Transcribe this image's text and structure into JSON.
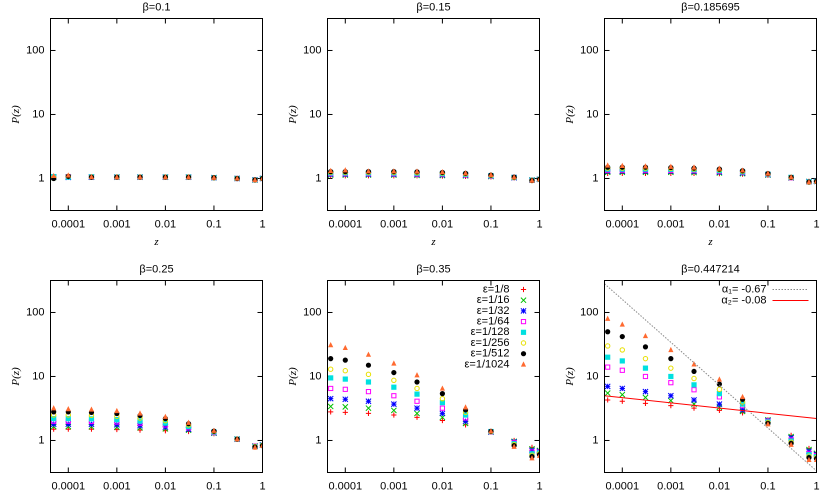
{
  "chart_data": [
    {
      "type": "scatter",
      "title": "β=0.1",
      "xlabel": "z",
      "ylabel": "P(z)",
      "log_x": true,
      "log_y": true,
      "xlim": [
        4.3e-05,
        1
      ],
      "ylim": [
        0.316,
        316
      ],
      "xticks": [
        0.0001,
        0.001,
        0.01,
        0.1,
        1
      ],
      "yticks": [
        1,
        10,
        100
      ],
      "x": [
        5e-05,
        0.0001,
        0.0003,
        0.001,
        0.003,
        0.01,
        0.03,
        0.1,
        0.3,
        0.7,
        1
      ],
      "series": [
        {
          "color": "#ff0000",
          "marker": "plus",
          "values": [
            1.05,
            1.05,
            1.05,
            1.05,
            1.05,
            1.05,
            1.05,
            1.03,
            1.0,
            0.95,
            1.0
          ]
        },
        {
          "color": "#00c000",
          "marker": "cross",
          "values": [
            1.04,
            1.06,
            1.05,
            1.05,
            1.05,
            1.05,
            1.05,
            1.03,
            1.0,
            0.95,
            1.0
          ]
        },
        {
          "color": "#0000ff",
          "marker": "star",
          "values": [
            1.06,
            1.04,
            1.05,
            1.05,
            1.05,
            1.05,
            1.05,
            1.03,
            1.0,
            0.95,
            1.0
          ]
        },
        {
          "color": "#ff00ff",
          "marker": "square-open",
          "values": [
            1.05,
            1.07,
            1.05,
            1.05,
            1.05,
            1.05,
            1.05,
            1.03,
            1.0,
            0.95,
            1.0
          ]
        },
        {
          "color": "#00e0e0",
          "marker": "square",
          "values": [
            1.07,
            1.05,
            1.06,
            1.05,
            1.05,
            1.05,
            1.05,
            1.03,
            1.0,
            0.95,
            1.0
          ]
        },
        {
          "color": "#e8e000",
          "marker": "circle-open",
          "values": [
            1.03,
            1.08,
            1.05,
            1.05,
            1.05,
            1.05,
            1.05,
            1.03,
            1.0,
            0.95,
            1.0
          ]
        },
        {
          "color": "#000000",
          "marker": "circle",
          "values": [
            1.0,
            1.08,
            1.05,
            1.05,
            1.05,
            1.05,
            1.05,
            1.03,
            1.0,
            0.95,
            1.0
          ]
        },
        {
          "color": "#ff6a30",
          "marker": "triangle",
          "values": [
            1.1,
            1.12,
            1.06,
            1.05,
            1.05,
            1.05,
            1.05,
            1.03,
            1.0,
            0.95,
            1.0
          ]
        }
      ]
    },
    {
      "type": "scatter",
      "title": "β=0.15",
      "xlabel": "z",
      "ylabel": "P(z)",
      "log_x": true,
      "log_y": true,
      "xlim": [
        4.3e-05,
        1
      ],
      "ylim": [
        0.316,
        316
      ],
      "xticks": [
        0.0001,
        0.001,
        0.01,
        0.1,
        1
      ],
      "yticks": [
        1,
        10,
        100
      ],
      "x": [
        5e-05,
        0.0001,
        0.0003,
        0.001,
        0.003,
        0.01,
        0.03,
        0.1,
        0.3,
        0.7,
        1
      ],
      "series": [
        {
          "color": "#ff0000",
          "marker": "plus",
          "values": [
            1.1,
            1.1,
            1.1,
            1.1,
            1.1,
            1.09,
            1.08,
            1.06,
            1.02,
            0.95,
            0.97
          ]
        },
        {
          "color": "#00c000",
          "marker": "cross",
          "values": [
            1.13,
            1.13,
            1.13,
            1.13,
            1.12,
            1.11,
            1.1,
            1.07,
            1.03,
            0.95,
            0.97
          ]
        },
        {
          "color": "#0000ff",
          "marker": "star",
          "values": [
            1.16,
            1.16,
            1.16,
            1.16,
            1.15,
            1.14,
            1.12,
            1.09,
            1.03,
            0.94,
            0.97
          ]
        },
        {
          "color": "#ff00ff",
          "marker": "square-open",
          "values": [
            1.19,
            1.19,
            1.19,
            1.19,
            1.18,
            1.17,
            1.14,
            1.1,
            1.04,
            0.94,
            0.97
          ]
        },
        {
          "color": "#00e0e0",
          "marker": "square",
          "values": [
            1.22,
            1.22,
            1.22,
            1.22,
            1.21,
            1.19,
            1.16,
            1.11,
            1.04,
            0.94,
            0.97
          ]
        },
        {
          "color": "#e8e000",
          "marker": "circle-open",
          "values": [
            1.25,
            1.25,
            1.25,
            1.25,
            1.24,
            1.22,
            1.18,
            1.12,
            1.04,
            0.93,
            0.97
          ]
        },
        {
          "color": "#000000",
          "marker": "circle",
          "values": [
            1.28,
            1.28,
            1.28,
            1.28,
            1.27,
            1.24,
            1.2,
            1.13,
            1.05,
            0.93,
            0.97
          ]
        },
        {
          "color": "#ff6a30",
          "marker": "triangle",
          "values": [
            1.32,
            1.35,
            1.3,
            1.3,
            1.29,
            1.26,
            1.21,
            1.14,
            1.05,
            0.93,
            0.97
          ]
        }
      ]
    },
    {
      "type": "scatter",
      "title": "β=0.185695",
      "xlabel": "z",
      "ylabel": "P(z)",
      "log_x": true,
      "log_y": true,
      "xlim": [
        4.3e-05,
        1
      ],
      "ylim": [
        0.316,
        316
      ],
      "xticks": [
        0.0001,
        0.001,
        0.01,
        0.1,
        1
      ],
      "yticks": [
        1,
        10,
        100
      ],
      "x": [
        5e-05,
        0.0001,
        0.0003,
        0.001,
        0.003,
        0.01,
        0.03,
        0.1,
        0.3,
        0.7,
        1
      ],
      "series": [
        {
          "color": "#ff0000",
          "marker": "plus",
          "values": [
            1.2,
            1.2,
            1.2,
            1.2,
            1.2,
            1.19,
            1.17,
            1.12,
            1.02,
            0.9,
            0.9
          ]
        },
        {
          "color": "#00c000",
          "marker": "cross",
          "values": [
            1.25,
            1.25,
            1.25,
            1.25,
            1.24,
            1.22,
            1.19,
            1.13,
            1.02,
            0.9,
            0.9
          ]
        },
        {
          "color": "#0000ff",
          "marker": "star",
          "values": [
            1.3,
            1.3,
            1.3,
            1.3,
            1.29,
            1.26,
            1.22,
            1.15,
            1.03,
            0.89,
            0.9
          ]
        },
        {
          "color": "#ff00ff",
          "marker": "square-open",
          "values": [
            1.35,
            1.35,
            1.35,
            1.34,
            1.33,
            1.3,
            1.25,
            1.16,
            1.03,
            0.89,
            0.9
          ]
        },
        {
          "color": "#00e0e0",
          "marker": "square",
          "values": [
            1.4,
            1.4,
            1.4,
            1.39,
            1.37,
            1.33,
            1.27,
            1.17,
            1.04,
            0.89,
            0.9
          ]
        },
        {
          "color": "#e8e000",
          "marker": "circle-open",
          "values": [
            1.45,
            1.45,
            1.45,
            1.44,
            1.41,
            1.37,
            1.3,
            1.18,
            1.04,
            0.88,
            0.9
          ]
        },
        {
          "color": "#000000",
          "marker": "circle",
          "values": [
            1.5,
            1.5,
            1.5,
            1.48,
            1.45,
            1.4,
            1.32,
            1.19,
            1.04,
            0.88,
            0.9
          ]
        },
        {
          "color": "#ff6a30",
          "marker": "triangle",
          "values": [
            1.6,
            1.58,
            1.55,
            1.53,
            1.49,
            1.43,
            1.34,
            1.2,
            1.05,
            0.88,
            0.9
          ]
        }
      ]
    },
    {
      "type": "scatter",
      "title": "β=0.25",
      "xlabel": "z",
      "ylabel": "P(z)",
      "log_x": true,
      "log_y": true,
      "xlim": [
        4.3e-05,
        1
      ],
      "ylim": [
        0.316,
        316
      ],
      "xticks": [
        0.0001,
        0.001,
        0.01,
        0.1,
        1
      ],
      "yticks": [
        1,
        10,
        100
      ],
      "x": [
        5e-05,
        0.0001,
        0.0003,
        0.001,
        0.003,
        0.01,
        0.03,
        0.1,
        0.3,
        0.7,
        1
      ],
      "series": [
        {
          "color": "#ff0000",
          "marker": "plus",
          "values": [
            1.5,
            1.5,
            1.5,
            1.48,
            1.45,
            1.42,
            1.38,
            1.28,
            1.05,
            0.82,
            0.85
          ]
        },
        {
          "color": "#00c000",
          "marker": "cross",
          "values": [
            1.65,
            1.65,
            1.64,
            1.62,
            1.58,
            1.52,
            1.45,
            1.3,
            1.05,
            0.82,
            0.85
          ]
        },
        {
          "color": "#0000ff",
          "marker": "star",
          "values": [
            1.8,
            1.8,
            1.79,
            1.76,
            1.7,
            1.62,
            1.5,
            1.32,
            1.05,
            0.81,
            0.85
          ]
        },
        {
          "color": "#ff00ff",
          "marker": "square-open",
          "values": [
            2.0,
            2.0,
            1.98,
            1.94,
            1.86,
            1.75,
            1.58,
            1.34,
            1.05,
            0.81,
            0.84
          ]
        },
        {
          "color": "#00e0e0",
          "marker": "square",
          "values": [
            2.2,
            2.2,
            2.18,
            2.12,
            2.02,
            1.87,
            1.65,
            1.36,
            1.05,
            0.8,
            0.84
          ]
        },
        {
          "color": "#e8e000",
          "marker": "circle-open",
          "values": [
            2.5,
            2.5,
            2.47,
            2.38,
            2.24,
            2.04,
            1.75,
            1.38,
            1.05,
            0.8,
            0.84
          ]
        },
        {
          "color": "#000000",
          "marker": "circle",
          "values": [
            2.8,
            2.8,
            2.75,
            2.64,
            2.45,
            2.2,
            1.83,
            1.4,
            1.05,
            0.79,
            0.83
          ]
        },
        {
          "color": "#ff6a30",
          "marker": "triangle",
          "values": [
            3.2,
            3.1,
            3.05,
            2.9,
            2.65,
            2.35,
            1.9,
            1.42,
            1.05,
            0.78,
            0.83
          ]
        }
      ]
    },
    {
      "type": "scatter",
      "title": "β=0.35",
      "xlabel": "z",
      "ylabel": "P(z)",
      "log_x": true,
      "log_y": true,
      "legend": "upper right",
      "xlim": [
        4.3e-05,
        1
      ],
      "ylim": [
        0.316,
        316
      ],
      "xticks": [
        0.0001,
        0.001,
        0.01,
        0.1,
        1
      ],
      "yticks": [
        1,
        10,
        100
      ],
      "x": [
        5e-05,
        0.0001,
        0.0003,
        0.001,
        0.003,
        0.01,
        0.03,
        0.1,
        0.3,
        0.7,
        1
      ],
      "series": [
        {
          "name": "ε=1/8",
          "color": "#ff0000",
          "marker": "plus",
          "values": [
            2.8,
            2.75,
            2.65,
            2.5,
            2.3,
            2.05,
            1.75,
            1.35,
            1.0,
            0.78,
            0.72
          ]
        },
        {
          "name": "ε=1/16",
          "color": "#00c000",
          "marker": "cross",
          "values": [
            3.4,
            3.35,
            3.2,
            2.95,
            2.65,
            2.3,
            1.85,
            1.35,
            0.97,
            0.74,
            0.7
          ]
        },
        {
          "name": "ε=1/32",
          "color": "#0000ff",
          "marker": "star",
          "values": [
            4.5,
            4.4,
            4.1,
            3.7,
            3.2,
            2.65,
            2.0,
            1.36,
            0.95,
            0.7,
            0.68
          ]
        },
        {
          "name": "ε=1/64",
          "color": "#ff00ff",
          "marker": "square-open",
          "values": [
            6.5,
            6.3,
            5.8,
            5.0,
            4.1,
            3.2,
            2.25,
            1.37,
            0.92,
            0.66,
            0.66
          ]
        },
        {
          "name": "ε=1/128",
          "color": "#00e0e0",
          "marker": "square",
          "values": [
            9.5,
            9.1,
            8.2,
            6.8,
            5.3,
            3.9,
            2.5,
            1.38,
            0.89,
            0.62,
            0.64
          ]
        },
        {
          "name": "ε=1/256",
          "color": "#e8e000",
          "marker": "circle-open",
          "values": [
            13,
            12.3,
            10.8,
            8.7,
            6.5,
            4.5,
            2.75,
            1.38,
            0.86,
            0.59,
            0.62
          ]
        },
        {
          "name": "ε=1/512",
          "color": "#000000",
          "marker": "circle",
          "values": [
            19,
            18,
            15,
            11.5,
            8.2,
            5.4,
            3.0,
            1.39,
            0.83,
            0.56,
            0.6
          ]
        },
        {
          "name": "ε=1/1024",
          "color": "#ff6a30",
          "marker": "triangle",
          "values": [
            31,
            28,
            22,
            16,
            10.5,
            6.5,
            3.3,
            1.4,
            0.8,
            0.53,
            0.58
          ]
        }
      ]
    },
    {
      "type": "scatter",
      "title": "β=0.447214",
      "xlabel": "z",
      "ylabel": "P(z)",
      "log_x": true,
      "log_y": true,
      "legend": "upper right",
      "xlim": [
        4.3e-05,
        1
      ],
      "ylim": [
        0.316,
        316
      ],
      "xticks": [
        0.0001,
        0.001,
        0.01,
        0.1,
        1
      ],
      "yticks": [
        1,
        10,
        100
      ],
      "x": [
        5e-05,
        0.0001,
        0.0003,
        0.001,
        0.003,
        0.01,
        0.03,
        0.1,
        0.3,
        0.7,
        1
      ],
      "series": [
        {
          "color": "#ff0000",
          "marker": "plus",
          "values": [
            4.3,
            4.1,
            3.8,
            3.5,
            3.2,
            2.95,
            2.7,
            2.1,
            1.2,
            0.75,
            0.65
          ]
        },
        {
          "color": "#00c000",
          "marker": "cross",
          "values": [
            5.5,
            5.2,
            4.7,
            4.2,
            3.7,
            3.3,
            2.85,
            2.1,
            1.15,
            0.72,
            0.63
          ]
        },
        {
          "color": "#0000ff",
          "marker": "star",
          "values": [
            7.0,
            6.5,
            5.8,
            5.0,
            4.3,
            3.7,
            3.0,
            2.05,
            1.1,
            0.68,
            0.61
          ]
        },
        {
          "color": "#ff00ff",
          "marker": "square-open",
          "values": [
            14,
            12.5,
            10,
            8,
            6.2,
            4.8,
            3.5,
            2.0,
            1.02,
            0.63,
            0.58
          ]
        },
        {
          "color": "#00e0e0",
          "marker": "square",
          "values": [
            20,
            17.5,
            13.5,
            10,
            7.4,
            5.4,
            3.7,
            1.95,
            0.98,
            0.6,
            0.56
          ]
        },
        {
          "color": "#e8e000",
          "marker": "circle-open",
          "values": [
            30,
            26,
            19,
            13.5,
            9.3,
            6.3,
            4.0,
            1.9,
            0.94,
            0.57,
            0.54
          ]
        },
        {
          "color": "#000000",
          "marker": "circle",
          "values": [
            50,
            42,
            29,
            19,
            12,
            7.6,
            4.4,
            1.85,
            0.9,
            0.54,
            0.52
          ]
        },
        {
          "color": "#ff6a30",
          "marker": "triangle",
          "values": [
            80,
            65,
            43,
            26,
            15.5,
            9.0,
            4.8,
            1.8,
            0.86,
            0.5,
            0.5
          ]
        }
      ],
      "fit_lines": [
        {
          "name": "α₁= -0.67",
          "color": "#888888",
          "dash": true,
          "x": [
            4.3e-05,
            1
          ],
          "values": [
            281,
            0.335
          ]
        },
        {
          "name": "α₂= -0.08",
          "color": "#ff0000",
          "dash": false,
          "x": [
            4.3e-05,
            1
          ],
          "values": [
            5.0,
            2.2
          ]
        }
      ]
    }
  ]
}
